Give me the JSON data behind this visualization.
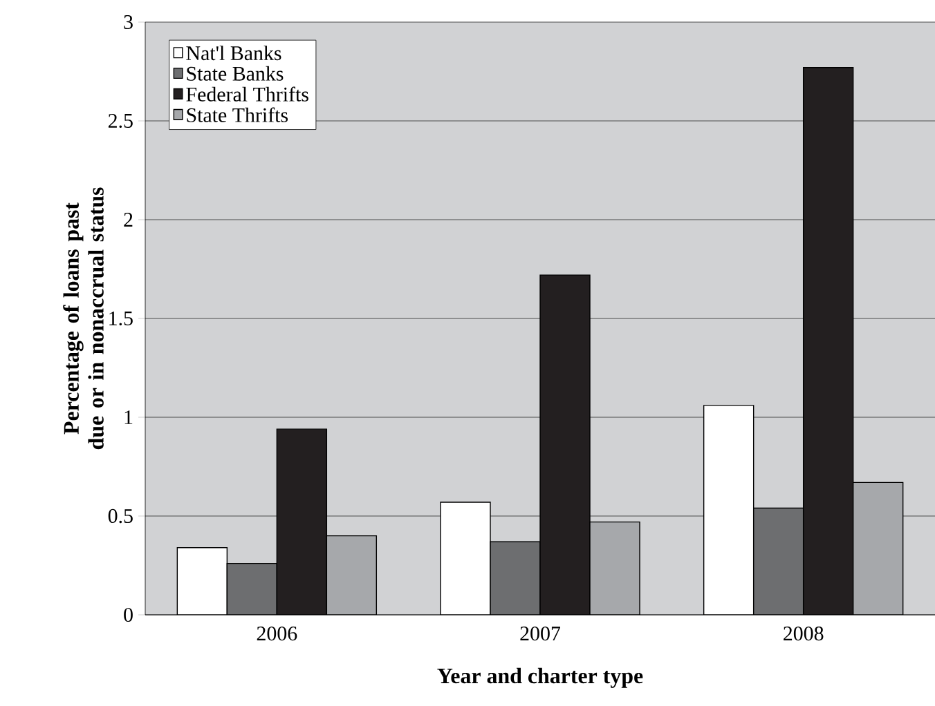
{
  "chart_data": {
    "type": "bar",
    "xlabel": "Year and charter type",
    "ylabel": "Percentage of loans past due or in nonaccrual status",
    "categories": [
      "2006",
      "2007",
      "2008"
    ],
    "series": [
      {
        "name": "Nat'l Banks",
        "color": "#ffffff",
        "values": [
          0.34,
          0.57,
          1.06
        ]
      },
      {
        "name": "State Banks",
        "color": "#6d6e70",
        "values": [
          0.26,
          0.37,
          0.54
        ]
      },
      {
        "name": "Federal Thrifts",
        "color": "#231f20",
        "values": [
          0.94,
          1.72,
          2.77
        ]
      },
      {
        "name": "State Thrifts",
        "color": "#a6a8ab",
        "values": [
          0.4,
          0.47,
          0.67
        ]
      }
    ],
    "ylim": [
      0,
      3
    ],
    "yticks": [
      0,
      0.5,
      1,
      1.5,
      2,
      2.5,
      3
    ],
    "grid": "y",
    "legend": "top left"
  }
}
